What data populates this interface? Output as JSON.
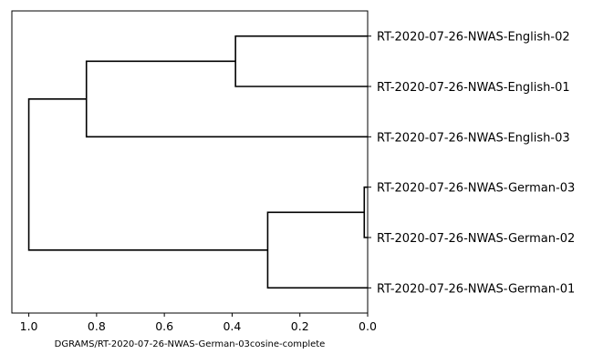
{
  "chart_data": {
    "type": "dendrogram",
    "orientation": "left",
    "xlabel": "DGRAMS/RT-2020-07-26-NWAS-German-03cosine-complete",
    "xlim": [
      1.05,
      0.0
    ],
    "xticks": [
      1.0,
      0.8,
      0.6,
      0.4,
      0.2,
      0.0
    ],
    "xtick_labels": [
      "1.0",
      "0.8",
      "0.6",
      "0.4",
      "0.2",
      "0.0"
    ],
    "grid": false,
    "leaves": [
      "RT-2020-07-26-NWAS-English-02",
      "RT-2020-07-26-NWAS-English-01",
      "RT-2020-07-26-NWAS-English-03",
      "RT-2020-07-26-NWAS-German-03",
      "RT-2020-07-26-NWAS-German-02",
      "RT-2020-07-26-NWAS-German-01"
    ],
    "merges": [
      {
        "children": [
          "RT-2020-07-26-NWAS-German-03",
          "RT-2020-07-26-NWAS-German-02"
        ],
        "distance": 0.01
      },
      {
        "children": [
          "RT-2020-07-26-NWAS-English-02",
          "RT-2020-07-26-NWAS-English-01"
        ],
        "distance": 0.39
      },
      {
        "children": [
          "[German-03, German-02]",
          "RT-2020-07-26-NWAS-German-01"
        ],
        "distance": 0.295
      },
      {
        "children": [
          "[English-02, English-01]",
          "RT-2020-07-26-NWAS-English-03"
        ],
        "distance": 0.83
      },
      {
        "children": [
          "[English-02, English-01, English-03]",
          "[German-03, German-02, German-01]"
        ],
        "distance": 1.0
      }
    ],
    "line_color": "#000000"
  }
}
